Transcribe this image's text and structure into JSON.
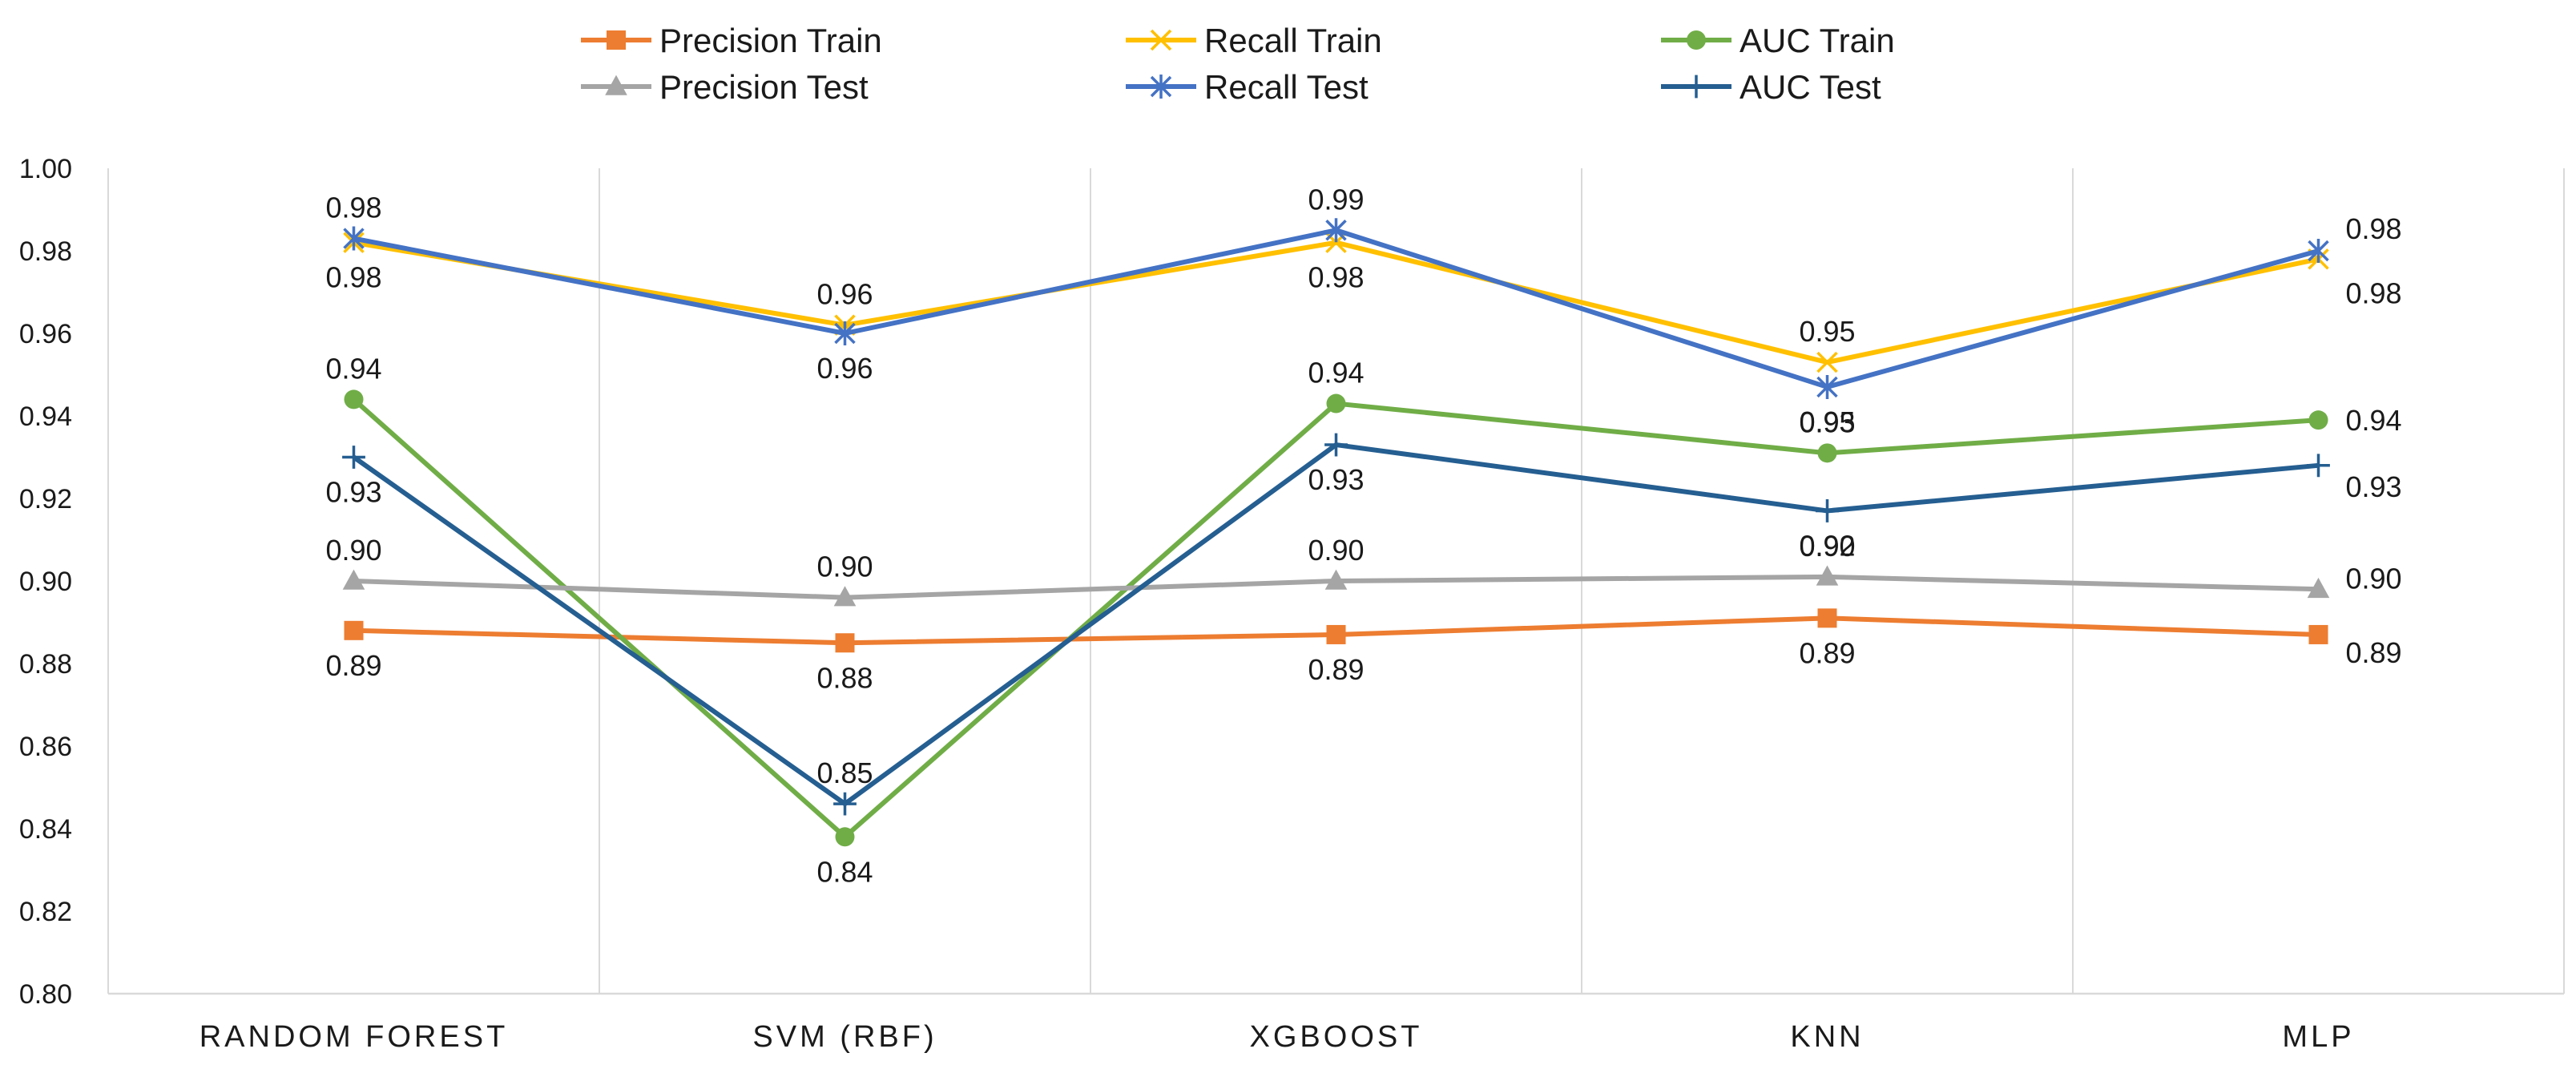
{
  "chart_data": {
    "type": "line",
    "categories": [
      "RANDOM FOREST",
      "SVM (RBF)",
      "XGBOOST",
      "KNN",
      "MLP"
    ],
    "ylim": [
      0.8,
      1.0
    ],
    "yticks": [
      "0.80",
      "0.82",
      "0.84",
      "0.86",
      "0.88",
      "0.90",
      "0.92",
      "0.94",
      "0.96",
      "0.98",
      "1.00"
    ],
    "grid": "vertical",
    "legend_position": "top",
    "series": [
      {
        "name": "Precision Train",
        "color": "#ED7D31",
        "marker": "square",
        "values": [
          0.888,
          0.885,
          0.887,
          0.891,
          0.887
        ],
        "labels": [
          "0.89",
          "0.88",
          "0.89",
          "0.89",
          "0.89"
        ]
      },
      {
        "name": "Recall Train",
        "color": "#FFC000",
        "marker": "x",
        "values": [
          0.982,
          0.962,
          0.982,
          0.953,
          0.978
        ],
        "labels": [
          "0.98",
          "0.96",
          "0.98",
          "0.95",
          "0.98"
        ]
      },
      {
        "name": "AUC Train",
        "color": "#70AD47",
        "marker": "circle",
        "values": [
          0.944,
          0.838,
          0.943,
          0.931,
          0.939
        ],
        "labels": [
          "0.94",
          "0.84",
          "0.94",
          "0.93",
          "0.94"
        ]
      },
      {
        "name": "Precision Test",
        "color": "#A5A5A5",
        "marker": "triangle",
        "values": [
          0.9,
          0.896,
          0.9,
          0.901,
          0.898
        ],
        "labels": [
          "0.90",
          "0.90",
          "0.90",
          "0.90",
          "0.90"
        ]
      },
      {
        "name": "Recall Test",
        "color": "#4472C4",
        "marker": "asterisk",
        "values": [
          0.983,
          0.96,
          0.985,
          0.947,
          0.98
        ],
        "labels": [
          "0.98",
          "0.96",
          "0.99",
          "0.95",
          "0.98"
        ]
      },
      {
        "name": "AUC Test",
        "color": "#255E91",
        "marker": "plus",
        "values": [
          0.93,
          0.846,
          0.933,
          0.917,
          0.928
        ],
        "labels": [
          "0.93",
          "0.85",
          "0.93",
          "0.92",
          "0.93"
        ]
      }
    ]
  }
}
